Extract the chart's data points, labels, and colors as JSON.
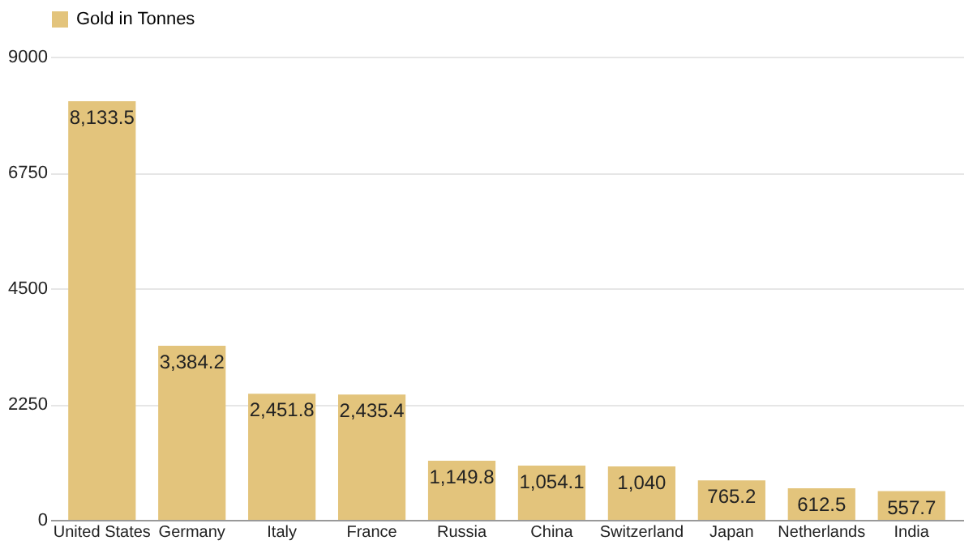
{
  "chart_data": {
    "type": "bar",
    "categories": [
      "United States",
      "Germany",
      "Italy",
      "France",
      "Russia",
      "China",
      "Switzerland",
      "Japan",
      "Netherlands",
      "India"
    ],
    "series": [
      {
        "name": "Gold in Tonnes",
        "color": "#e3c47c",
        "values": [
          8133.5,
          3384.2,
          2451.8,
          2435.4,
          1149.8,
          1054.1,
          1040,
          765.2,
          612.5,
          557.7
        ],
        "value_labels": [
          "8,133.5",
          "3,384.2",
          "2,451.8",
          "2,435.4",
          "1,149.8",
          "1,054.1",
          "1,040",
          "765.2",
          "612.5",
          "557.7"
        ]
      }
    ],
    "ylim": [
      0,
      9000
    ],
    "yticks": [
      0,
      2250,
      4500,
      6750,
      9000
    ],
    "grid": "y",
    "legend": "top"
  }
}
